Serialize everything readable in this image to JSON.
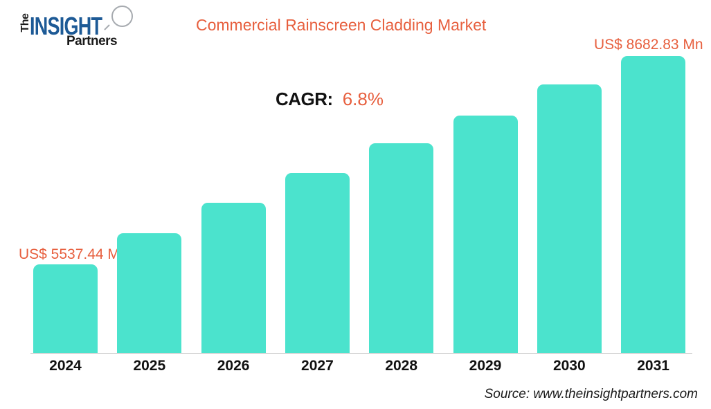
{
  "logo": {
    "word_the": "The",
    "word_insight": "INSIGHT",
    "word_partners": "Partners"
  },
  "header": {
    "title": "Commercial Rainscreen Cladding Market"
  },
  "cagr": {
    "label": "CAGR:",
    "value": "6.8%"
  },
  "annotations": {
    "first_bar_label": "US$ 5537.44 Mn",
    "last_bar_label": "US$ 8682.83 Mn"
  },
  "footer": {
    "source": "Source: www.theinsightpartners.com"
  },
  "colors": {
    "bar_fill": "#4be3cd",
    "accent_orange": "#e75f3e",
    "logo_blue": "#1d5a96",
    "axis_line": "#c9c9c9"
  },
  "chart_data": {
    "type": "bar",
    "title": "Commercial Rainscreen Cladding Market",
    "categories": [
      "2024",
      "2025",
      "2026",
      "2027",
      "2028",
      "2029",
      "2030",
      "2031"
    ],
    "unit": "US$ Mn",
    "labeled_values": {
      "2024": 5537.44,
      "2031": 8682.83
    },
    "cagr_percent": 6.8,
    "values_mn_estimated": [
      5537.44,
      5904.6,
      6296.1,
      6713.5,
      7158.7,
      7633.3,
      8139.5,
      8682.83
    ],
    "bar_heights_relative": [
      0.298,
      0.403,
      0.506,
      0.606,
      0.706,
      0.8,
      0.904,
      1.0
    ],
    "x_axis_labels_visible": true,
    "y_axis_visible": false,
    "gridlines": false,
    "legend": "none"
  }
}
